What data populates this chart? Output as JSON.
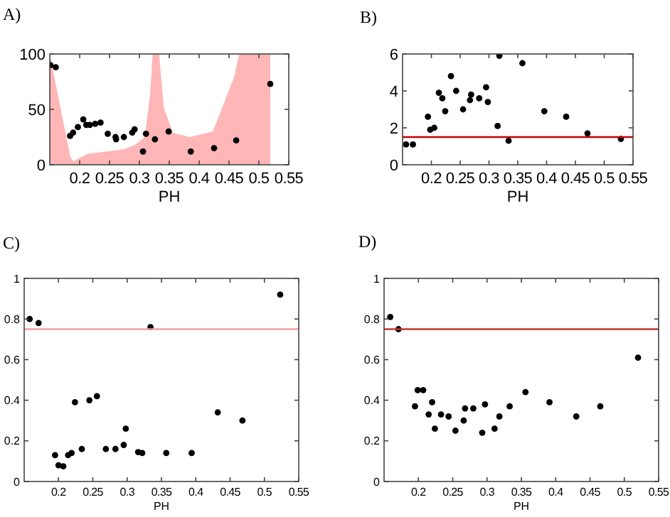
{
  "chart_data": [
    {
      "type": "scatter",
      "title": "A)",
      "xlabel": "PH",
      "xlim": [
        0.15,
        0.55
      ],
      "xticks": [
        0.2,
        0.25,
        0.3,
        0.35,
        0.4,
        0.45,
        0.5,
        0.55
      ],
      "ylim": [
        0,
        100
      ],
      "yticks": [
        0,
        50,
        100
      ],
      "series": [
        {
          "type": "area",
          "color": "#ffb6b6",
          "x": [
            0.15,
            0.184,
            0.189,
            0.214,
            0.246,
            0.273,
            0.293,
            0.309,
            0.318,
            0.322,
            0.333,
            0.341,
            0.356,
            0.384,
            0.423,
            0.459,
            0.467,
            0.519,
            0.5191
          ],
          "values": [
            100,
            8,
            3,
            10,
            12,
            14,
            18,
            25,
            64,
            100,
            100,
            51,
            29,
            25,
            30,
            80,
            100,
            100,
            0
          ]
        },
        {
          "color": "#000000",
          "x": [
            0.151,
            0.16,
            0.184,
            0.189,
            0.197,
            0.206,
            0.211,
            0.217,
            0.226,
            0.235,
            0.247,
            0.26,
            0.261,
            0.274,
            0.288,
            0.292,
            0.306,
            0.311,
            0.326,
            0.349,
            0.386,
            0.425,
            0.462,
            0.519
          ],
          "values": [
            90,
            88,
            26,
            29,
            34,
            41,
            36,
            36,
            37,
            38,
            28,
            25,
            23,
            25,
            29,
            32,
            12,
            28,
            23,
            30,
            12,
            15,
            22,
            73
          ]
        }
      ]
    },
    {
      "type": "scatter",
      "title": "B)",
      "xlabel": "PH",
      "xlim": [
        0.15,
        0.55
      ],
      "xticks": [
        0.2,
        0.25,
        0.3,
        0.35,
        0.4,
        0.45,
        0.5,
        0.55
      ],
      "ylim": [
        0,
        6
      ],
      "yticks": [
        0,
        2,
        4,
        6
      ],
      "marker": "circle",
      "ref_lines": [
        {
          "axis": "y",
          "value": 1.5,
          "color": "#c00000"
        }
      ],
      "series": [
        {
          "color": "#000000",
          "x": [
            0.156,
            0.168,
            0.194,
            0.198,
            0.205,
            0.213,
            0.219,
            0.224,
            0.234,
            0.243,
            0.255,
            0.267,
            0.269,
            0.283,
            0.295,
            0.298,
            0.315,
            0.318,
            0.334,
            0.358,
            0.396,
            0.434,
            0.471,
            0.529
          ],
          "values": [
            1.1,
            1.1,
            2.6,
            1.9,
            2.0,
            3.9,
            3.6,
            2.9,
            4.8,
            4.0,
            3.0,
            3.5,
            3.8,
            3.6,
            4.2,
            3.4,
            2.1,
            5.9,
            1.3,
            5.5,
            2.9,
            2.6,
            1.7,
            1.4
          ]
        }
      ]
    },
    {
      "type": "scatter",
      "title": "C)",
      "xlabel": "PH",
      "xlim": [
        0.15,
        0.55
      ],
      "xticks": [
        0.2,
        0.25,
        0.3,
        0.35,
        0.4,
        0.45,
        0.5,
        0.55
      ],
      "ylim": [
        0,
        1
      ],
      "yticks": [
        0,
        0.2,
        0.4,
        0.6,
        0.8,
        1
      ],
      "marker": "circle",
      "ref_lines": [
        {
          "axis": "y",
          "value": 0.75,
          "color": "#f2a0a0"
        }
      ],
      "series": [
        {
          "color": "#000000",
          "x": [
            0.158,
            0.171,
            0.195,
            0.2,
            0.207,
            0.214,
            0.219,
            0.224,
            0.234,
            0.245,
            0.256,
            0.269,
            0.283,
            0.295,
            0.298,
            0.316,
            0.322,
            0.334,
            0.357,
            0.394,
            0.432,
            0.468,
            0.523
          ],
          "values": [
            0.8,
            0.78,
            0.13,
            0.08,
            0.075,
            0.13,
            0.14,
            0.39,
            0.16,
            0.4,
            0.42,
            0.16,
            0.16,
            0.18,
            0.26,
            0.145,
            0.14,
            0.76,
            0.14,
            0.14,
            0.34,
            0.3,
            0.92
          ]
        }
      ]
    },
    {
      "type": "scatter",
      "title": "D)",
      "xlabel": "PH",
      "xlim": [
        0.15,
        0.55
      ],
      "xticks": [
        0.2,
        0.25,
        0.3,
        0.35,
        0.4,
        0.45,
        0.5,
        0.55
      ],
      "ylim": [
        0,
        1
      ],
      "yticks": [
        0,
        0.2,
        0.4,
        0.6,
        0.8,
        1
      ],
      "marker": "circle",
      "ref_lines": [
        {
          "axis": "y",
          "value": 0.75,
          "color": "#c0392b"
        }
      ],
      "series": [
        {
          "color": "#000000",
          "x": [
            0.159,
            0.171,
            0.195,
            0.199,
            0.207,
            0.215,
            0.22,
            0.224,
            0.233,
            0.244,
            0.254,
            0.266,
            0.268,
            0.28,
            0.293,
            0.297,
            0.311,
            0.318,
            0.333,
            0.356,
            0.391,
            0.43,
            0.465,
            0.52
          ],
          "values": [
            0.81,
            0.75,
            0.37,
            0.45,
            0.45,
            0.33,
            0.39,
            0.26,
            0.33,
            0.32,
            0.25,
            0.3,
            0.36,
            0.36,
            0.24,
            0.38,
            0.26,
            0.32,
            0.37,
            0.44,
            0.39,
            0.32,
            0.37,
            0.61
          ]
        }
      ]
    }
  ]
}
